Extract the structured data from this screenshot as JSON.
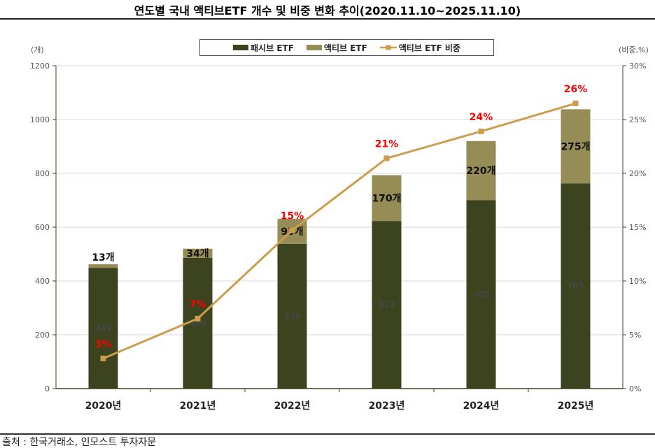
{
  "title": "연도별 국내 액티브ETF 개수 및 비중 변화 추이(2020.11.10~2025.11.10)",
  "source": "출처 : 한국거래소, 인모스트 투자자문",
  "chart_data": {
    "type": "bar",
    "stacked": true,
    "title": "연도별 국내 액티브ETF 개수 및 비중 변화 추이(2020.11.10~2025.11.10)",
    "categories": [
      "2020년",
      "2021년",
      "2022년",
      "2023년",
      "2024년",
      "2025년"
    ],
    "y_left": {
      "unit_label": "(개)",
      "range": [
        0,
        1200
      ],
      "ticks": [
        "0",
        "200",
        "400",
        "600",
        "800",
        "1000",
        "1200"
      ]
    },
    "y_right": {
      "unit_label": "(비중,%)",
      "range": [
        0,
        30
      ],
      "ticks": [
        "0%",
        "5%",
        "10%",
        "15%",
        "20%",
        "25%",
        "30%"
      ]
    },
    "grid": true,
    "legend_position": "top",
    "series": [
      {
        "name": "패시브 ETF",
        "type": "bar",
        "axis": "left",
        "color": "#3c431f",
        "values": [
          449,
          486,
          538,
          623,
          700,
          763
        ],
        "labels": [
          "449",
          "486",
          "538",
          "623",
          "700",
          "763"
        ]
      },
      {
        "name": "액티브 ETF",
        "type": "bar",
        "axis": "left",
        "color": "#968c56",
        "values": [
          13,
          34,
          93,
          170,
          220,
          275
        ],
        "labels": [
          "13개",
          "34개",
          "93개",
          "170개",
          "220개",
          "275개"
        ]
      },
      {
        "name": "액티브 ETF 비중",
        "type": "line",
        "axis": "right",
        "color": "#cc9d4e",
        "values": [
          2.8,
          6.5,
          14.7,
          21.4,
          23.9,
          26.5
        ],
        "labels": [
          "3%",
          "7%",
          "15%",
          "21%",
          "24%",
          "26%"
        ],
        "label_color": "#ff0000"
      }
    ]
  }
}
